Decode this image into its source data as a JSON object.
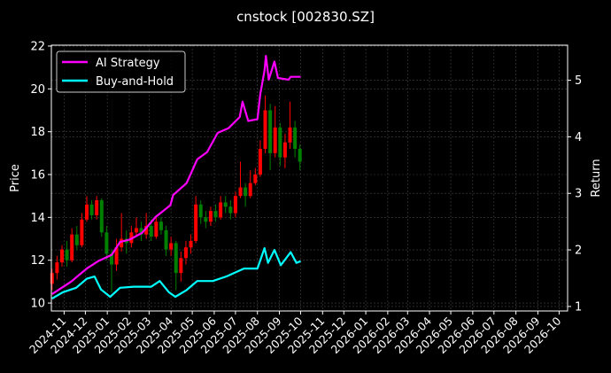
{
  "chart_data": {
    "type": "line",
    "title": "cnstock [002830.SZ]",
    "ylabel": "Price",
    "y2label": "Return",
    "ylim": [
      9.63,
      22.04
    ],
    "y2lim": [
      0.92,
      5.62
    ],
    "xlim": [
      "2024-10-14",
      "2026-10-13"
    ],
    "yticks": [
      10,
      12,
      14,
      16,
      18,
      20,
      22
    ],
    "y2ticks": [
      1,
      2,
      3,
      4,
      5
    ],
    "xticks": [
      "2024-11",
      "2024-12",
      "2025-01",
      "2025-02",
      "2025-03",
      "2025-04",
      "2025-05",
      "2025-06",
      "2025-07",
      "2025-08",
      "2025-09",
      "2025-10",
      "2025-11",
      "2025-12",
      "2026-01",
      "2026-02",
      "2026-03",
      "2026-04",
      "2026-05",
      "2026-06",
      "2026-07",
      "2026-08",
      "2026-09",
      "2026-10"
    ],
    "grid": true,
    "legend_placement": "top-left",
    "colors": {
      "up": "#ff0000",
      "down": "#008000",
      "strategy": "#ff00ff",
      "buyhold": "#00ffff",
      "grid": "#444444",
      "background": "#000000"
    },
    "candles": {
      "columns": [
        "date",
        "open",
        "high",
        "low",
        "close"
      ],
      "rows": [
        [
          "2024-10-15",
          10.9,
          11.6,
          10.6,
          11.4
        ],
        [
          "2024-10-22",
          11.4,
          12.2,
          11.1,
          11.9
        ],
        [
          "2024-10-29",
          11.9,
          12.7,
          11.7,
          12.5
        ],
        [
          "2024-11-05",
          12.5,
          12.9,
          11.7,
          12.0
        ],
        [
          "2024-11-12",
          12.0,
          13.5,
          11.9,
          13.2
        ],
        [
          "2024-11-19",
          13.2,
          13.6,
          12.5,
          12.7
        ],
        [
          "2024-11-26",
          12.7,
          14.2,
          12.6,
          13.9
        ],
        [
          "2024-12-03",
          13.9,
          15.0,
          13.8,
          14.6
        ],
        [
          "2024-12-10",
          14.6,
          14.8,
          13.9,
          14.1
        ],
        [
          "2024-12-17",
          14.1,
          15.0,
          13.9,
          14.8
        ],
        [
          "2024-12-24",
          14.8,
          14.9,
          13.1,
          13.3
        ],
        [
          "2024-12-31",
          13.3,
          13.6,
          12.0,
          12.3
        ],
        [
          "2025-01-07",
          12.3,
          12.5,
          10.5,
          11.8
        ],
        [
          "2025-01-14",
          11.8,
          13.0,
          11.5,
          12.6
        ],
        [
          "2025-01-21",
          12.6,
          14.2,
          12.4,
          13.0
        ],
        [
          "2025-01-28",
          13.0,
          13.4,
          12.3,
          12.8
        ],
        [
          "2025-02-04",
          12.8,
          13.6,
          12.6,
          13.3
        ],
        [
          "2025-02-11",
          13.3,
          14.0,
          13.1,
          13.5
        ],
        [
          "2025-02-18",
          13.5,
          13.8,
          12.9,
          13.2
        ],
        [
          "2025-02-25",
          13.2,
          14.2,
          13.0,
          13.6
        ],
        [
          "2025-03-04",
          13.6,
          13.9,
          12.9,
          13.1
        ],
        [
          "2025-03-11",
          13.1,
          14.1,
          13.0,
          13.8
        ],
        [
          "2025-03-18",
          13.8,
          14.0,
          13.2,
          13.4
        ],
        [
          "2025-03-25",
          13.4,
          13.6,
          12.2,
          12.5
        ],
        [
          "2025-04-01",
          12.5,
          13.1,
          12.2,
          12.8
        ],
        [
          "2025-04-08",
          12.8,
          12.9,
          10.6,
          11.4
        ],
        [
          "2025-04-15",
          11.4,
          12.4,
          11.0,
          12.1
        ],
        [
          "2025-04-22",
          12.1,
          12.9,
          11.8,
          12.6
        ],
        [
          "2025-04-29",
          12.6,
          13.2,
          12.3,
          12.9
        ],
        [
          "2025-05-06",
          12.9,
          15.0,
          12.8,
          14.6
        ],
        [
          "2025-05-13",
          14.6,
          14.8,
          13.7,
          14.0
        ],
        [
          "2025-05-20",
          14.0,
          14.3,
          13.5,
          13.8
        ],
        [
          "2025-05-27",
          13.8,
          14.5,
          13.6,
          14.3
        ],
        [
          "2025-06-03",
          14.3,
          14.6,
          13.8,
          14.0
        ],
        [
          "2025-06-10",
          14.0,
          15.0,
          13.9,
          14.7
        ],
        [
          "2025-06-17",
          14.7,
          15.0,
          14.2,
          14.5
        ],
        [
          "2025-06-24",
          14.5,
          14.8,
          13.9,
          14.2
        ],
        [
          "2025-07-01",
          14.2,
          15.2,
          14.0,
          15.0
        ],
        [
          "2025-07-08",
          15.0,
          16.6,
          14.9,
          15.4
        ],
        [
          "2025-07-15",
          15.4,
          15.6,
          14.5,
          15.0
        ],
        [
          "2025-07-22",
          15.0,
          16.2,
          14.9,
          15.6
        ],
        [
          "2025-07-29",
          15.6,
          16.3,
          15.5,
          16.0
        ],
        [
          "2025-08-05",
          16.0,
          17.6,
          15.9,
          17.2
        ],
        [
          "2025-08-12",
          17.2,
          19.7,
          17.0,
          19.0
        ],
        [
          "2025-08-19",
          19.0,
          19.3,
          16.2,
          17.0
        ],
        [
          "2025-08-26",
          17.0,
          19.2,
          16.8,
          18.2
        ],
        [
          "2025-09-02",
          18.2,
          18.4,
          16.4,
          16.8
        ],
        [
          "2025-09-09",
          16.8,
          17.9,
          16.3,
          17.5
        ],
        [
          "2025-09-16",
          17.5,
          19.4,
          17.2,
          18.2
        ],
        [
          "2025-09-23",
          18.2,
          18.5,
          16.8,
          17.2
        ],
        [
          "2025-09-30",
          17.2,
          17.4,
          16.2,
          16.6
        ]
      ]
    },
    "series": [
      {
        "name": "AI Strategy",
        "axis": "right",
        "x": [
          "2024-10-15",
          "2024-11-11",
          "2024-12-03",
          "2024-12-19",
          "2025-01-07",
          "2025-01-19",
          "2025-02-01",
          "2025-02-19",
          "2025-03-10",
          "2025-03-31",
          "2025-04-04",
          "2025-04-23",
          "2025-05-08",
          "2025-05-22",
          "2025-06-06",
          "2025-06-21",
          "2025-07-07",
          "2025-07-11",
          "2025-07-19",
          "2025-08-01",
          "2025-08-05",
          "2025-08-11",
          "2025-08-13",
          "2025-08-17",
          "2025-08-25",
          "2025-08-30",
          "2025-09-14",
          "2025-09-17",
          "2025-10-01"
        ],
        "y": [
          1.22,
          1.44,
          1.67,
          1.8,
          1.91,
          2.14,
          2.18,
          2.3,
          2.58,
          2.79,
          2.97,
          3.18,
          3.6,
          3.73,
          4.07,
          4.15,
          4.35,
          4.62,
          4.28,
          4.31,
          4.75,
          5.17,
          5.43,
          5.01,
          5.33,
          5.04,
          5.01,
          5.06,
          5.06
        ]
      },
      {
        "name": "Buy-and-Hold",
        "axis": "right",
        "x": [
          "2024-10-15",
          "2024-10-30",
          "2024-11-18",
          "2024-12-03",
          "2024-12-14",
          "2024-12-23",
          "2025-01-05",
          "2025-01-19",
          "2025-02-07",
          "2025-03-04",
          "2025-03-16",
          "2025-03-29",
          "2025-04-07",
          "2025-04-23",
          "2025-05-08",
          "2025-05-30",
          "2025-06-18",
          "2025-07-13",
          "2025-08-01",
          "2025-08-11",
          "2025-08-16",
          "2025-08-25",
          "2025-09-03",
          "2025-09-17",
          "2025-09-25",
          "2025-10-01"
        ],
        "y": [
          1.14,
          1.25,
          1.33,
          1.49,
          1.53,
          1.3,
          1.17,
          1.33,
          1.35,
          1.35,
          1.45,
          1.25,
          1.17,
          1.29,
          1.45,
          1.45,
          1.53,
          1.67,
          1.67,
          2.03,
          1.77,
          2.0,
          1.73,
          1.96,
          1.77,
          1.8
        ]
      }
    ]
  }
}
